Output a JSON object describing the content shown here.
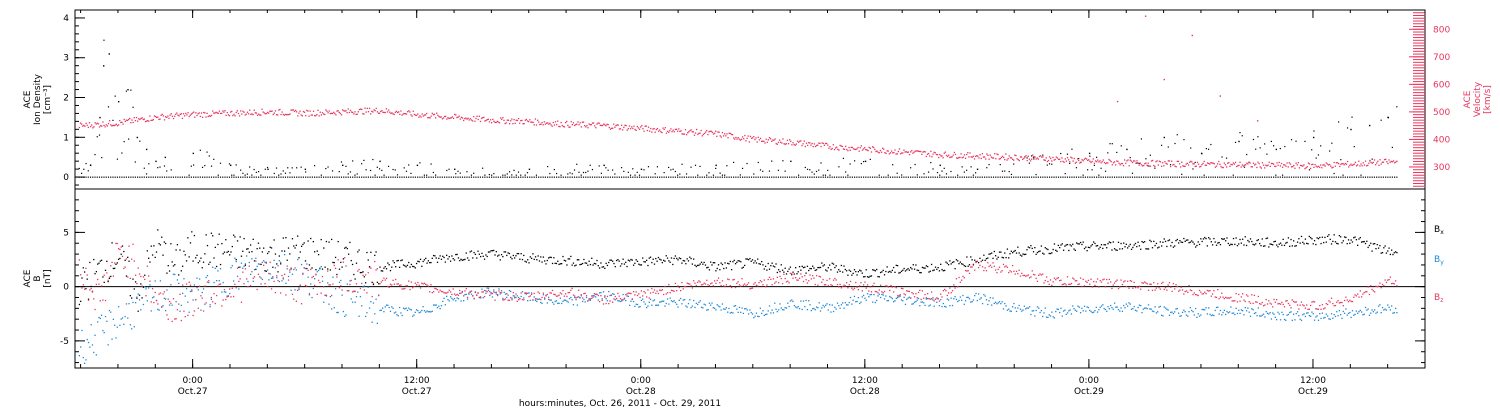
{
  "colors": {
    "black": "#000000",
    "pink": "#e8365e",
    "blue": "#1e88d8",
    "axis": "#000000"
  },
  "chart_data": [
    {
      "type": "scatter",
      "panel": "top",
      "ylabel_left": [
        "ACE",
        "Ion Density",
        "[cm⁻³]"
      ],
      "ylabel_right": [
        "ACE",
        "Velocity",
        "[km/s]"
      ],
      "ylim_left": [
        -0.3,
        4.2
      ],
      "ylim_right": [
        220,
        870
      ],
      "yticks_left": [
        "0",
        "1",
        "2",
        "3",
        "4"
      ],
      "yticks_right": [
        "300",
        "400",
        "500",
        "600",
        "700",
        "800"
      ],
      "x_hours_range": [
        -6.3,
        66.0
      ],
      "series": [
        {
          "axis": "left",
          "color": "black",
          "points": [
            [
              -5.5,
              0.3
            ],
            [
              -5,
              1.5
            ],
            [
              -4.8,
              2.8
            ],
            [
              -4.5,
              3.1
            ],
            [
              -4,
              1.9
            ],
            [
              -3.5,
              2.2
            ],
            [
              -3,
              1.0
            ],
            [
              -2.5,
              0.7
            ],
            [
              -2,
              0.4
            ],
            [
              -1.5,
              0.5
            ],
            [
              0,
              0.6
            ],
            [
              2,
              0.3
            ],
            [
              4,
              0.2
            ],
            [
              6,
              0.2
            ],
            [
              8,
              0.3
            ],
            [
              10,
              0.4
            ],
            [
              12,
              0.3
            ],
            [
              14,
              0.2
            ],
            [
              18,
              0.2
            ],
            [
              22,
              0.3
            ],
            [
              24,
              0.2
            ],
            [
              28,
              0.3
            ],
            [
              32,
              0.4
            ],
            [
              36,
              0.4
            ],
            [
              40,
              0.3
            ],
            [
              42,
              0.2
            ],
            [
              45,
              0.5
            ],
            [
              48,
              0.6
            ],
            [
              50,
              0.7
            ],
            [
              52,
              1.0
            ],
            [
              54,
              0.6
            ],
            [
              56,
              0.9
            ],
            [
              58,
              0.7
            ],
            [
              60,
              1.0
            ],
            [
              62,
              1.2
            ],
            [
              63,
              1.3
            ],
            [
              64,
              1.5
            ]
          ]
        },
        {
          "axis": "right",
          "color": "pink",
          "points": [
            [
              -6,
              450
            ],
            [
              -4,
              460
            ],
            [
              -2,
              480
            ],
            [
              0,
              490
            ],
            [
              2,
              495
            ],
            [
              4,
              500
            ],
            [
              6,
              495
            ],
            [
              8,
              500
            ],
            [
              10,
              505
            ],
            [
              12,
              490
            ],
            [
              14,
              480
            ],
            [
              16,
              470
            ],
            [
              18,
              465
            ],
            [
              20,
              455
            ],
            [
              22,
              450
            ],
            [
              24,
              440
            ],
            [
              26,
              430
            ],
            [
              28,
              420
            ],
            [
              30,
              400
            ],
            [
              32,
              390
            ],
            [
              34,
              375
            ],
            [
              36,
              365
            ],
            [
              38,
              355
            ],
            [
              40,
              345
            ],
            [
              42,
              340
            ],
            [
              44,
              335
            ],
            [
              46,
              330
            ],
            [
              48,
              320
            ],
            [
              50,
              315
            ],
            [
              52,
              312
            ],
            [
              54,
              310
            ],
            [
              56,
              308
            ],
            [
              58,
              306
            ],
            [
              60,
              304
            ],
            [
              62,
              310
            ],
            [
              64,
              318
            ]
          ]
        }
      ]
    },
    {
      "type": "scatter",
      "panel": "bottom",
      "ylabel": [
        "ACE",
        "B",
        "[nT]"
      ],
      "ylim": [
        -7.5,
        9.0
      ],
      "yticks": [
        "-5",
        "0",
        "5"
      ],
      "legend": [
        "B",
        "B",
        "B"
      ],
      "legend_sub": [
        "x",
        "y",
        "z"
      ],
      "x_hours_range": [
        -6.3,
        66.0
      ],
      "series": [
        {
          "name": "B",
          "sub": "x",
          "color": "black",
          "points": [
            [
              -6,
              0
            ],
            [
              -5,
              1.5
            ],
            [
              -4,
              3
            ],
            [
              -3,
              -1
            ],
            [
              -2,
              4
            ],
            [
              -1,
              2
            ],
            [
              0,
              3.5
            ],
            [
              2,
              3.2
            ],
            [
              4,
              3
            ],
            [
              6,
              3.2
            ],
            [
              8,
              2.5
            ],
            [
              10,
              1.8
            ],
            [
              12,
              2.2
            ],
            [
              14,
              2.8
            ],
            [
              16,
              3
            ],
            [
              18,
              2.6
            ],
            [
              20,
              2.4
            ],
            [
              22,
              2.1
            ],
            [
              24,
              2.3
            ],
            [
              26,
              2.5
            ],
            [
              28,
              1.8
            ],
            [
              30,
              2.2
            ],
            [
              32,
              1.5
            ],
            [
              34,
              1.8
            ],
            [
              36,
              1.2
            ],
            [
              38,
              1.6
            ],
            [
              40,
              1.8
            ],
            [
              42,
              2.5
            ],
            [
              44,
              3.2
            ],
            [
              46,
              3.5
            ],
            [
              48,
              3.7
            ],
            [
              50,
              3.8
            ],
            [
              52,
              4.0
            ],
            [
              54,
              4.1
            ],
            [
              56,
              4.2
            ],
            [
              58,
              4.0
            ],
            [
              60,
              4.3
            ],
            [
              62,
              4.4
            ],
            [
              64,
              3.2
            ]
          ]
        },
        {
          "name": "B",
          "sub": "y",
          "color": "blue",
          "points": [
            [
              -6,
              -5.5
            ],
            [
              -5,
              -4.5
            ],
            [
              -4,
              -3
            ],
            [
              -3,
              -2
            ],
            [
              -2,
              -1
            ],
            [
              -1,
              -0.5
            ],
            [
              0,
              -1
            ],
            [
              2,
              1
            ],
            [
              4,
              2
            ],
            [
              6,
              1
            ],
            [
              8,
              -1
            ],
            [
              10,
              -2
            ],
            [
              12,
              -2.5
            ],
            [
              14,
              -1
            ],
            [
              16,
              -0.5
            ],
            [
              18,
              -1
            ],
            [
              20,
              -1.5
            ],
            [
              22,
              -0.8
            ],
            [
              24,
              -1.5
            ],
            [
              26,
              -1.5
            ],
            [
              28,
              -1.8
            ],
            [
              30,
              -2.5
            ],
            [
              32,
              -1.5
            ],
            [
              34,
              -2
            ],
            [
              36,
              -1
            ],
            [
              38,
              -1.2
            ],
            [
              40,
              -1.5
            ],
            [
              42,
              -1
            ],
            [
              44,
              -2
            ],
            [
              46,
              -2.5
            ],
            [
              48,
              -2
            ],
            [
              50,
              -1.8
            ],
            [
              52,
              -2.3
            ],
            [
              54,
              -2.4
            ],
            [
              56,
              -2.2
            ],
            [
              58,
              -2.6
            ],
            [
              60,
              -2.8
            ],
            [
              62,
              -2.4
            ],
            [
              64,
              -2.0
            ]
          ]
        },
        {
          "name": "B",
          "sub": "z",
          "color": "pink",
          "points": [
            [
              -6,
              1
            ],
            [
              -5,
              -1
            ],
            [
              -4,
              3
            ],
            [
              -3,
              2
            ],
            [
              -2,
              -1
            ],
            [
              -1,
              -2
            ],
            [
              0,
              -1
            ],
            [
              2,
              0
            ],
            [
              4,
              1
            ],
            [
              6,
              0
            ],
            [
              8,
              1
            ],
            [
              10,
              0.5
            ],
            [
              12,
              0
            ],
            [
              14,
              -0.5
            ],
            [
              16,
              -0.8
            ],
            [
              18,
              -1
            ],
            [
              20,
              -0.5
            ],
            [
              22,
              -1.2
            ],
            [
              24,
              -0.8
            ],
            [
              26,
              0
            ],
            [
              28,
              0.5
            ],
            [
              30,
              0.2
            ],
            [
              32,
              0.8
            ],
            [
              34,
              0.5
            ],
            [
              36,
              0
            ],
            [
              38,
              -0.5
            ],
            [
              40,
              -1
            ],
            [
              42,
              2
            ],
            [
              44,
              1.5
            ],
            [
              46,
              0.5
            ],
            [
              48,
              0.4
            ],
            [
              50,
              0.2
            ],
            [
              52,
              0
            ],
            [
              54,
              -0.5
            ],
            [
              56,
              -1
            ],
            [
              58,
              -1.5
            ],
            [
              60,
              -1.8
            ],
            [
              62,
              -1.2
            ],
            [
              64,
              0.5
            ]
          ]
        }
      ]
    }
  ],
  "x_axis": {
    "ticks": [
      {
        "hour": 0,
        "time": "0:00",
        "date": "Oct.27"
      },
      {
        "hour": 12,
        "time": "12:00",
        "date": "Oct.27"
      },
      {
        "hour": 24,
        "time": "0:00",
        "date": "Oct.28"
      },
      {
        "hour": 36,
        "time": "12:00",
        "date": "Oct.28"
      },
      {
        "hour": 48,
        "time": "0:00",
        "date": "Oct.29"
      },
      {
        "hour": 60,
        "time": "12:00",
        "date": "Oct.29"
      }
    ],
    "xlabel": "hours:minutes, Oct. 26, 2011 - Oct. 29, 2011"
  }
}
